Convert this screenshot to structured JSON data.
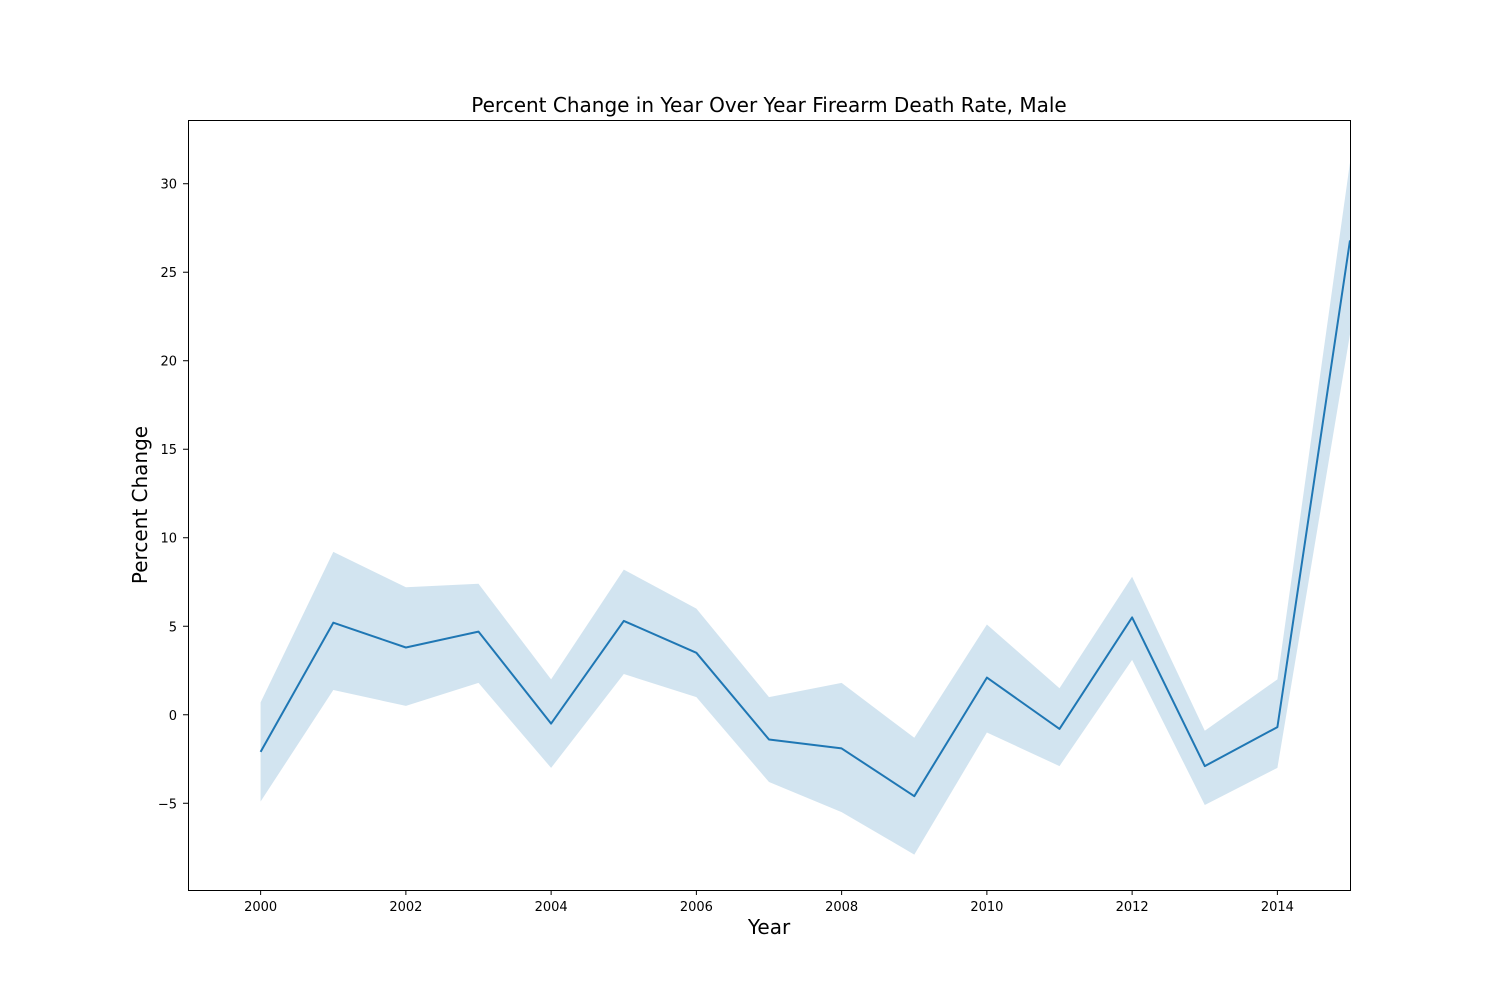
{
  "chart_data": {
    "type": "line",
    "title": "Percent Change in Year Over Year Firearm Death Rate, Male",
    "xlabel": "Year",
    "ylabel": "Percent Change",
    "xlim": [
      1999,
      2015
    ],
    "ylim": [
      -9.9,
      33.6
    ],
    "x_ticks": [
      2000,
      2002,
      2004,
      2006,
      2008,
      2010,
      2012,
      2014
    ],
    "x_tick_labels": [
      "2000",
      "2002",
      "2004",
      "2006",
      "2008",
      "2010",
      "2012",
      "2014"
    ],
    "y_ticks": [
      -5,
      0,
      5,
      10,
      15,
      20,
      25,
      30
    ],
    "y_tick_labels": [
      "−5",
      "0",
      "5",
      "10",
      "15",
      "20",
      "25",
      "30"
    ],
    "grid": false,
    "colors": {
      "line": "#1f77b4",
      "band": "#1f77b4"
    },
    "series": [
      {
        "x": [
          2000,
          2001,
          2002,
          2003,
          2004,
          2005,
          2006,
          2007,
          2008,
          2009,
          2010,
          2011,
          2012,
          2013,
          2014,
          2015
        ],
        "values": [
          -2.1,
          5.2,
          3.8,
          4.7,
          -0.5,
          5.3,
          3.5,
          -1.4,
          -1.9,
          -4.6,
          2.1,
          -0.8,
          5.5,
          -2.9,
          -0.7,
          26.8
        ],
        "upper": [
          0.7,
          9.2,
          7.2,
          7.4,
          2.0,
          8.2,
          6.0,
          1.0,
          1.8,
          -1.3,
          5.1,
          1.5,
          7.8,
          -0.9,
          2.0,
          31.2
        ],
        "lower": [
          -4.9,
          1.4,
          0.5,
          1.8,
          -3.0,
          2.3,
          1.0,
          -3.8,
          -5.5,
          -7.9,
          -1.0,
          -2.9,
          3.1,
          -5.1,
          -3.0,
          21.5
        ]
      }
    ]
  }
}
